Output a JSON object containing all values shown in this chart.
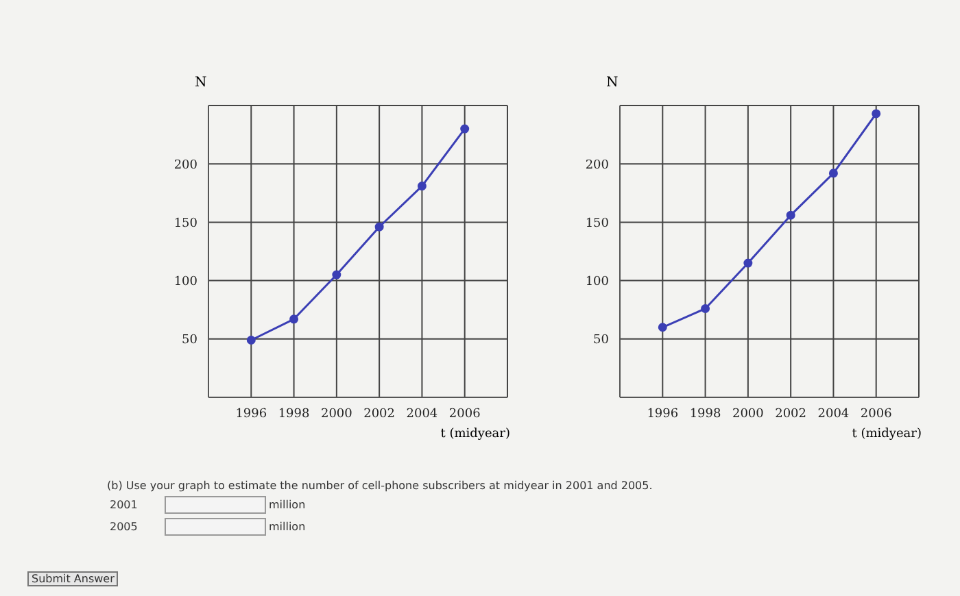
{
  "chart_data": [
    {
      "type": "line",
      "xlabel": "t (midyear)",
      "ylabel": "N",
      "x": [
        1996,
        1998,
        2000,
        2002,
        2004,
        2006
      ],
      "series": [
        {
          "color": "#3b3fb5",
          "values": [
            49,
            67,
            105,
            146,
            181,
            230
          ]
        }
      ],
      "xlim": [
        1994,
        2008
      ],
      "xticks": [
        1996,
        1998,
        2000,
        2002,
        2004,
        2006
      ],
      "ylim": [
        0,
        250
      ],
      "yticks": [
        50,
        100,
        150,
        200
      ],
      "grid": true,
      "marker": "circle"
    },
    {
      "type": "line",
      "xlabel": "t (midyear)",
      "ylabel": "N",
      "x": [
        1996,
        1998,
        2000,
        2002,
        2004,
        2006
      ],
      "series": [
        {
          "color": "#3b3fb5",
          "values": [
            60,
            76,
            115,
            156,
            192,
            243
          ]
        }
      ],
      "xlim": [
        1994,
        2008
      ],
      "xticks": [
        1996,
        1998,
        2000,
        2002,
        2004,
        2006
      ],
      "ylim": [
        0,
        250
      ],
      "yticks": [
        50,
        100,
        150,
        200
      ],
      "grid": true,
      "marker": "circle"
    },
    {
      "type": "other",
      "annotations": [
        "(b) Use your graph to estimate the number of cell-phone subscribers at midyear in 2001 and 2005.",
        "2001",
        "million",
        "2005",
        "million",
        "Submit Answer"
      ]
    }
  ]
}
